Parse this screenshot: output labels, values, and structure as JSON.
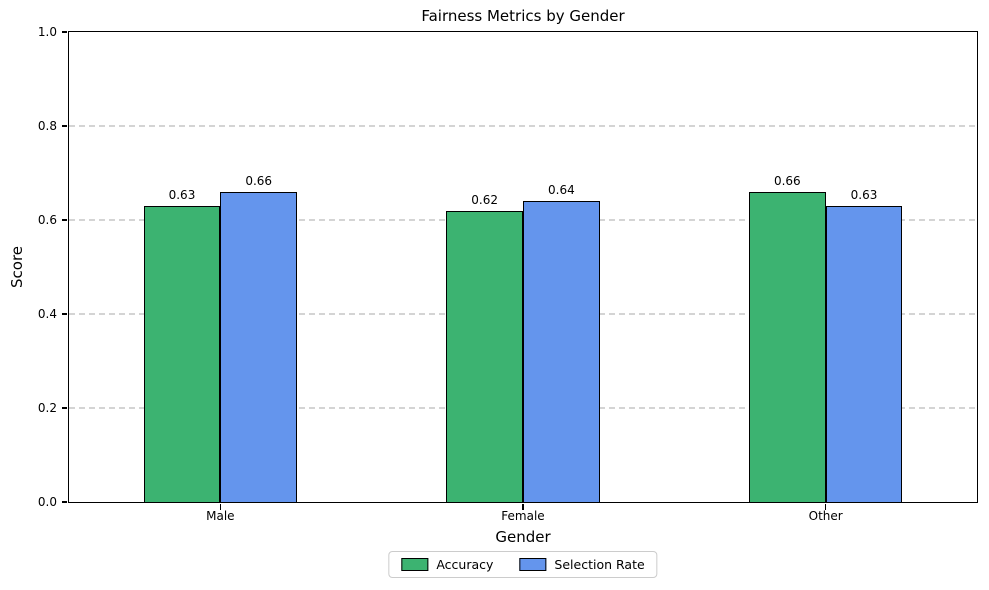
{
  "chart_data": {
    "type": "bar",
    "title": "Fairness Metrics by Gender",
    "xlabel": "Gender",
    "ylabel": "Score",
    "categories": [
      "Male",
      "Female",
      "Other"
    ],
    "series": [
      {
        "name": "Accuracy",
        "color": "#3cb371",
        "values": [
          0.63,
          0.62,
          0.66
        ],
        "labels": [
          "0.63",
          "0.62",
          "0.66"
        ]
      },
      {
        "name": "Selection Rate",
        "color": "#6495ed",
        "values": [
          0.66,
          0.64,
          0.63
        ],
        "labels": [
          "0.66",
          "0.64",
          "0.63"
        ]
      }
    ],
    "ylim": [
      0.0,
      1.0
    ],
    "yticks": [
      "0.0",
      "0.2",
      "0.4",
      "0.6",
      "0.8",
      "1.0"
    ],
    "grid": "horizontal dashed gridlines",
    "grid_color": "#d4d4d4",
    "bar_edge_color": "#000000",
    "legend_position": "below chart, centered",
    "layout": {
      "bar_width_pct": 8.45
    }
  }
}
